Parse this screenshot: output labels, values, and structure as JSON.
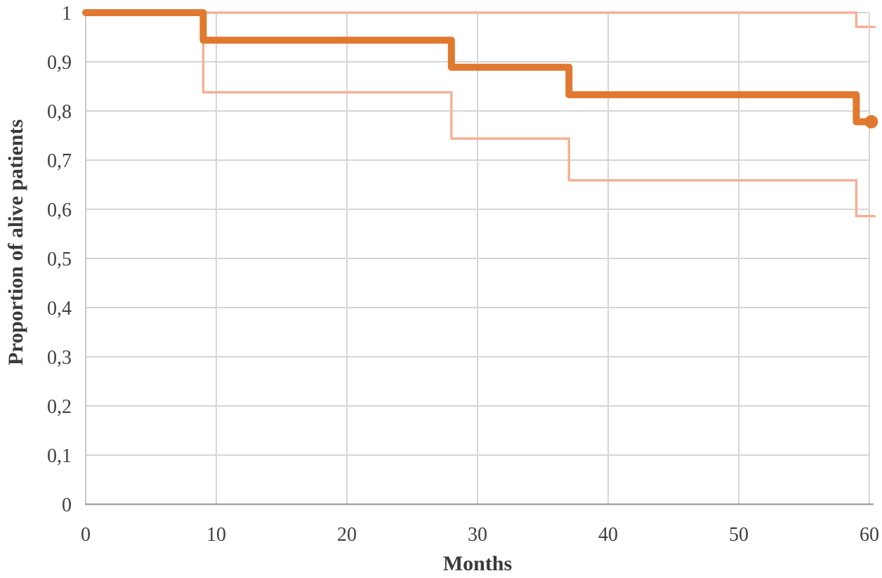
{
  "chart_data": {
    "type": "line",
    "subtype": "kaplan-meier-step",
    "title": "",
    "xlabel": "Months",
    "ylabel": "Proportion of alive patients",
    "xlim": [
      0,
      60
    ],
    "ylim": [
      0,
      1
    ],
    "grid": true,
    "legend": false,
    "x_ticks": [
      {
        "v": 0,
        "label": "0"
      },
      {
        "v": 10,
        "label": "10"
      },
      {
        "v": 20,
        "label": "20"
      },
      {
        "v": 30,
        "label": "30"
      },
      {
        "v": 40,
        "label": "40"
      },
      {
        "v": 50,
        "label": "50"
      },
      {
        "v": 60,
        "label": "60"
      }
    ],
    "y_ticks": [
      {
        "v": 0,
        "label": "0"
      },
      {
        "v": 0.1,
        "label": "0,1"
      },
      {
        "v": 0.2,
        "label": "0,2"
      },
      {
        "v": 0.3,
        "label": "0,3"
      },
      {
        "v": 0.4,
        "label": "0,4"
      },
      {
        "v": 0.5,
        "label": "0,5"
      },
      {
        "v": 0.6,
        "label": "0,6"
      },
      {
        "v": 0.7,
        "label": "0,7"
      },
      {
        "v": 0.8,
        "label": "0,8"
      },
      {
        "v": 0.9,
        "label": "0,9"
      },
      {
        "v": 1,
        "label": "1"
      }
    ],
    "colors": {
      "survival": "#E0792F",
      "confidence": "#F4B198",
      "gridline": "#D6D6D6",
      "y_axis_line": "#C9C9C9",
      "x_axis_line": "#A6A6A6",
      "text": "#3F3F3F"
    },
    "series": [
      {
        "name": "upper-95ci",
        "role": "confidence",
        "width": 3.5,
        "steps": [
          [
            0,
            1
          ],
          [
            59,
            1
          ],
          [
            59,
            0.971
          ],
          [
            60.4,
            0.971
          ]
        ]
      },
      {
        "name": "lower-95ci",
        "role": "confidence",
        "width": 3.5,
        "steps": [
          [
            0,
            1
          ],
          [
            9,
            1
          ],
          [
            9,
            0.838
          ],
          [
            28,
            0.838
          ],
          [
            28,
            0.744
          ],
          [
            37,
            0.744
          ],
          [
            37,
            0.659
          ],
          [
            59,
            0.659
          ],
          [
            59,
            0.586
          ],
          [
            60.4,
            0.586
          ]
        ]
      },
      {
        "name": "overall-survival",
        "role": "survival",
        "width": 10,
        "steps": [
          [
            0,
            1
          ],
          [
            9,
            1
          ],
          [
            9,
            0.944
          ],
          [
            28,
            0.944
          ],
          [
            28,
            0.889
          ],
          [
            37,
            0.889
          ],
          [
            37,
            0.833
          ],
          [
            59,
            0.833
          ],
          [
            59,
            0.778
          ],
          [
            60.15,
            0.778
          ]
        ],
        "end_marker": {
          "x": 60.15,
          "y": 0.778,
          "r": 9.5
        }
      }
    ]
  }
}
